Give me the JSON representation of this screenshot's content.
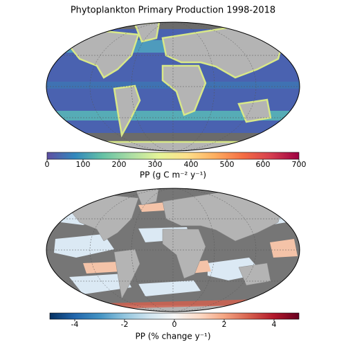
{
  "title": "Phytoplankton Primary Production 1998-2018",
  "maps": [
    {
      "colorbar": {
        "label": "PP (g C m⁻² y⁻¹)",
        "lim": [
          0,
          700
        ],
        "ticks": [
          0,
          100,
          200,
          300,
          400,
          500,
          600,
          700
        ],
        "colors": [
          "#5e4fa2",
          "#3288bd",
          "#66c2a5",
          "#abdda4",
          "#e6f598",
          "#fee08b",
          "#fdae61",
          "#f46d43",
          "#d53e4f",
          "#9e0142"
        ]
      }
    },
    {
      "colorbar": {
        "label": "PP (% change y⁻¹)",
        "lim": [
          -5,
          5
        ],
        "ticks": [
          -4,
          -2,
          0,
          2,
          4
        ],
        "colors": [
          "#053061",
          "#2166ac",
          "#4393c3",
          "#92c5de",
          "#d1e5f0",
          "#f7f7f7",
          "#fddbc7",
          "#f4a582",
          "#d6604d",
          "#b2182b",
          "#67001f"
        ]
      }
    }
  ]
}
